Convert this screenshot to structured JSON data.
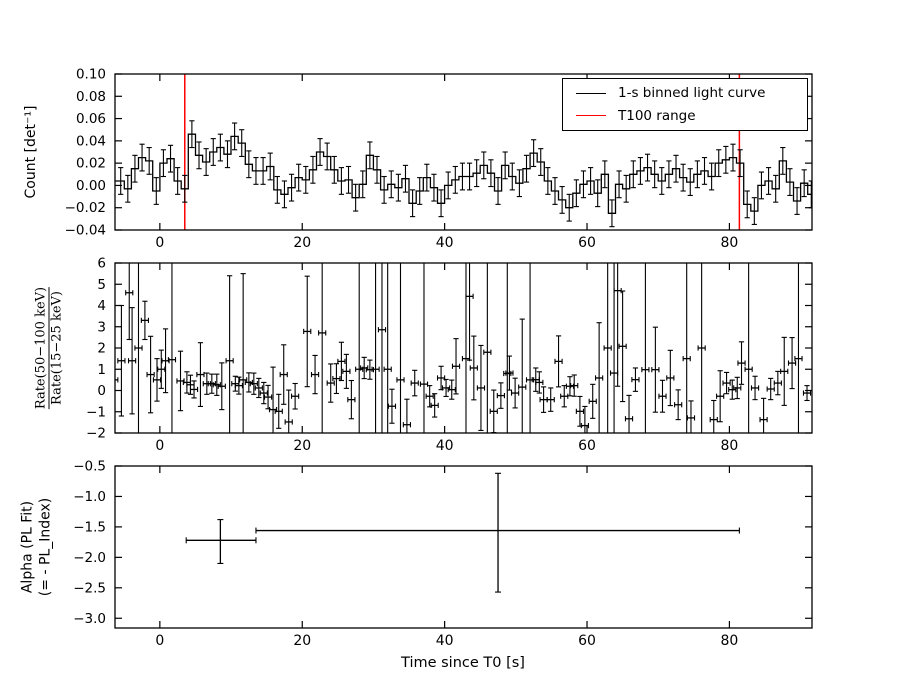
{
  "xlabel": "Time since T0 [s]",
  "colors": {
    "black": "#000000",
    "red": "#ff0000",
    "frame": "#000000",
    "background": "#ffffff"
  },
  "legend": {
    "entries": [
      {
        "label": "1-s binned light curve",
        "color": "#000000"
      },
      {
        "label": "T100 range",
        "color": "#ff0000"
      }
    ]
  },
  "t100_range": {
    "start_s": 3.5,
    "end_s": 81.4
  },
  "chart_data": [
    {
      "type": "line",
      "subtype": "step-histogram-errorbar",
      "title": "",
      "ylabel": "Count [det⁻¹]",
      "xlim": [
        -6.3,
        91.6
      ],
      "ylim": [
        -0.04,
        0.1
      ],
      "xticks": {
        "values": [
          0,
          20,
          40,
          60,
          80
        ],
        "labels": [
          "0",
          "20",
          "40",
          "60",
          "80"
        ]
      },
      "yticks": {
        "values": [
          0.1,
          0.08,
          0.06,
          0.04,
          0.02,
          0.0,
          -0.02,
          -0.04
        ],
        "labels": [
          "0.10",
          "0.08",
          "0.06",
          "0.04",
          "0.02",
          "0.00",
          "−0.02",
          "−0.04"
        ]
      },
      "vlines": [
        3.5,
        81.4
      ],
      "bin_start": -6,
      "bin_width": 1,
      "yerr": 0.012,
      "values": [
        0.004,
        -0.003,
        0.015,
        0.025,
        0.022,
        -0.005,
        0.02,
        0.024,
        0.004,
        -0.003,
        0.046,
        0.027,
        0.021,
        0.03,
        0.034,
        0.028,
        0.044,
        0.038,
        0.019,
        0.013,
        0.013,
        0.017,
        -0.004,
        -0.008,
        -0.002,
        0.007,
        0.005,
        0.014,
        0.03,
        0.026,
        0.014,
        0.004,
        0.005,
        -0.011,
        0.001,
        0.027,
        0.014,
        -0.004,
        0.001,
        -0.002,
        0.006,
        -0.016,
        -0.005,
        0.007,
        -0.002,
        -0.016,
        0.0,
        0.005,
        0.008,
        0.008,
        0.011,
        0.018,
        0.011,
        -0.005,
        0.018,
        0.008,
        0.002,
        0.015,
        0.029,
        0.021,
        0.004,
        -0.005,
        -0.013,
        -0.02,
        -0.007,
        0.001,
        0.004,
        -0.007,
        0.01,
        -0.025,
        0.001,
        -0.003,
        0.01,
        0.013,
        0.016,
        0.01,
        0.004,
        0.01,
        0.015,
        0.007,
        0.003,
        0.01,
        0.013,
        0.008,
        0.02,
        0.023,
        0.025,
        0.02,
        -0.017,
        -0.023,
        0.0,
        0.004,
        -0.003,
        0.022,
        0.003,
        -0.014,
        0.002,
        -0.008
      ]
    },
    {
      "type": "scatter",
      "subtype": "errorbar-ratio",
      "ylabel_numerator": "Rate(50−100 keV)",
      "ylabel_denominator": "Rate(15−25 keV)",
      "xlim": [
        -6.3,
        91.6
      ],
      "ylim": [
        -2,
        6
      ],
      "xerr_half_width": 0.5,
      "xticks": {
        "values": [
          0,
          20,
          40,
          60,
          80
        ],
        "labels": [
          "0",
          "20",
          "40",
          "60",
          "80"
        ]
      },
      "yticks": {
        "values": [
          6,
          5,
          4,
          3,
          2,
          1,
          0,
          -1,
          -2
        ],
        "labels": [
          "6",
          "5",
          "4",
          "3",
          "2",
          "1",
          "0",
          "−1",
          "−2"
        ]
      },
      "points": [
        [
          -6.4,
          0.5,
          9
        ],
        [
          -5.4,
          1.4,
          2.6
        ],
        [
          -4.3,
          4.6,
          2.2
        ],
        [
          -3.9,
          1.4,
          2.5
        ],
        [
          -3.0,
          2.0,
          9
        ],
        [
          -2.1,
          3.3,
          0.9
        ],
        [
          -1.3,
          0.75,
          1.8
        ],
        [
          -0.4,
          0.5,
          1.0
        ],
        [
          0.2,
          1.0,
          0.9
        ],
        [
          0.8,
          1.4,
          1.5
        ],
        [
          1.7,
          1.45,
          8
        ],
        [
          2.9,
          0.45,
          1.4
        ],
        [
          3.8,
          0.38,
          0.5
        ],
        [
          4.3,
          0.27,
          0.45
        ],
        [
          4.8,
          0.05,
          0.4
        ],
        [
          5.7,
          0.75,
          1.5
        ],
        [
          6.6,
          0.32,
          0.5
        ],
        [
          7.3,
          0.32,
          0.45
        ],
        [
          8.0,
          0.27,
          0.5
        ],
        [
          8.7,
          0.2,
          1.1
        ],
        [
          9.8,
          1.4,
          4.0
        ],
        [
          10.6,
          0.32,
          0.35
        ],
        [
          11.1,
          0.23,
          0.4
        ],
        [
          11.7,
          0.5,
          5.0
        ],
        [
          12.5,
          0.38,
          0.45
        ],
        [
          13.2,
          0.32,
          0.5
        ],
        [
          13.9,
          0.12,
          0.45
        ],
        [
          14.6,
          -0.12,
          0.5
        ],
        [
          15.2,
          -0.31,
          0.55
        ],
        [
          15.9,
          -0.9,
          2.0
        ],
        [
          16.7,
          -0.98,
          0.8
        ],
        [
          17.4,
          0.75,
          1.4
        ],
        [
          18.1,
          -1.48,
          1.5
        ],
        [
          19.0,
          -0.27,
          0.6
        ],
        [
          20.7,
          2.78,
          2.6
        ],
        [
          21.8,
          0.75,
          0.9
        ],
        [
          22.8,
          2.71,
          5.0
        ],
        [
          24.0,
          0.35,
          0.9
        ],
        [
          24.8,
          0.56,
          0.7
        ],
        [
          25.5,
          1.37,
          0.9
        ],
        [
          26.2,
          0.9,
          0.8
        ],
        [
          26.9,
          -0.43,
          0.9
        ],
        [
          28.0,
          1.0,
          8
        ],
        [
          28.7,
          1.06,
          0.5
        ],
        [
          29.5,
          0.98,
          0.45
        ],
        [
          30.3,
          1.0,
          8
        ],
        [
          31.2,
          2.86,
          6
        ],
        [
          32.0,
          1.0,
          8
        ],
        [
          32.6,
          -0.74,
          0.8
        ],
        [
          33.8,
          0.5,
          8
        ],
        [
          34.7,
          -1.61,
          1.2
        ],
        [
          35.8,
          0.35,
          0.6
        ],
        [
          37.1,
          0.3,
          6
        ],
        [
          37.9,
          -0.27,
          0.5
        ],
        [
          38.6,
          -0.7,
          0.55
        ],
        [
          39.5,
          0.59,
          0.55
        ],
        [
          40.2,
          0.12,
          0.4
        ],
        [
          41.0,
          0.04,
          0.45
        ],
        [
          41.6,
          1.14,
          1.3
        ],
        [
          43.0,
          1.5,
          7
        ],
        [
          43.5,
          4.43,
          3.0
        ],
        [
          44.1,
          1.06,
          1.5
        ],
        [
          45.1,
          0.12,
          2.0
        ],
        [
          46.0,
          1.8,
          6
        ],
        [
          46.9,
          -0.98,
          1.0
        ],
        [
          47.9,
          -0.24,
          0.6
        ],
        [
          48.8,
          0.8,
          8
        ],
        [
          49.1,
          0.82,
          0.8
        ],
        [
          49.9,
          -0.12,
          0.7
        ],
        [
          50.9,
          0.16,
          3.2
        ],
        [
          52.0,
          0.5,
          8
        ],
        [
          52.8,
          0.51,
          0.55
        ],
        [
          53.3,
          0.38,
          0.5
        ],
        [
          53.9,
          -0.43,
          0.6
        ],
        [
          54.9,
          -0.43,
          0.55
        ],
        [
          56.0,
          1.37,
          1.2
        ],
        [
          56.8,
          -0.27,
          0.5
        ],
        [
          57.6,
          0.2,
          0.45
        ],
        [
          58.2,
          0.23,
          0.5
        ],
        [
          59.0,
          -0.98,
          0.7
        ],
        [
          59.7,
          -1.65,
          0.9
        ],
        [
          60.8,
          -0.51,
          0.8
        ],
        [
          61.7,
          0.59,
          2.6
        ],
        [
          62.9,
          2.0,
          8
        ],
        [
          63.8,
          0.82,
          7
        ],
        [
          64.3,
          4.7,
          4.5
        ],
        [
          65.0,
          2.08,
          2.6
        ],
        [
          65.9,
          -1.33,
          1.1
        ],
        [
          66.8,
          0.51,
          0.55
        ],
        [
          68.2,
          0.98,
          7
        ],
        [
          69.6,
          0.98,
          2.0
        ],
        [
          70.6,
          -0.27,
          0.75
        ],
        [
          71.7,
          0.59,
          1.3
        ],
        [
          72.8,
          -0.67,
          0.7
        ],
        [
          74.0,
          1.5,
          8
        ],
        [
          74.6,
          -1.29,
          0.8
        ],
        [
          76.1,
          2.0,
          8
        ],
        [
          77.8,
          -1.37,
          0.9
        ],
        [
          78.7,
          -0.27,
          1.2
        ],
        [
          79.6,
          0.35,
          0.5
        ],
        [
          80.4,
          0.04,
          0.45
        ],
        [
          81.1,
          0.12,
          0.5
        ],
        [
          81.7,
          1.29,
          1.0
        ],
        [
          82.7,
          1.0,
          8
        ],
        [
          83.6,
          0.12,
          0.55
        ],
        [
          84.8,
          -1.37,
          1.0
        ],
        [
          85.8,
          0.07,
          0.5
        ],
        [
          86.8,
          0.35,
          0.55
        ],
        [
          87.7,
          0.9,
          1.6
        ],
        [
          88.8,
          1.29,
          1.2
        ],
        [
          89.7,
          1.5,
          8
        ],
        [
          90.9,
          -0.12,
          0.35
        ]
      ]
    },
    {
      "type": "scatter",
      "subtype": "errorbar-xy",
      "ylabel_line1": "Alpha (PL Fit)",
      "ylabel_line2": "(= - PL_Index)",
      "xlim": [
        -6.3,
        91.6
      ],
      "ylim": [
        -3.16,
        -0.5
      ],
      "xticks": {
        "values": [
          0,
          20,
          40,
          60,
          80
        ],
        "labels": [
          "0",
          "20",
          "40",
          "60",
          "80"
        ]
      },
      "yticks": {
        "values": [
          -0.5,
          -1.0,
          -1.5,
          -2.0,
          -2.5,
          -3.0
        ],
        "labels": [
          "−0.5",
          "−1.0",
          "−1.5",
          "−2.0",
          "−2.5",
          "−3.0"
        ]
      },
      "points": [
        {
          "x": 8.5,
          "y": -1.72,
          "xlo": 3.7,
          "xhi": 13.5,
          "ylo": -2.1,
          "yhi": -1.38
        },
        {
          "x": 47.5,
          "y": -1.56,
          "xlo": 13.5,
          "xhi": 81.4,
          "ylo": -2.57,
          "yhi": -0.62
        }
      ]
    }
  ]
}
